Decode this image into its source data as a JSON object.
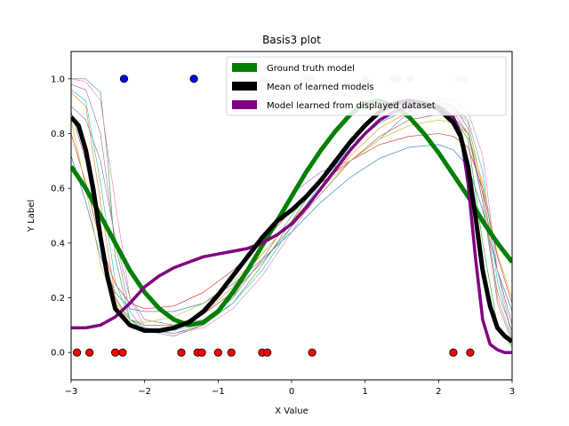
{
  "chart_data": {
    "type": "line",
    "title": "Basis3 plot",
    "xlabel": "X Value",
    "ylabel": "Y Label",
    "xlim": [
      -3,
      3
    ],
    "ylim": [
      -0.1,
      1.1
    ],
    "xticks": [
      "−3",
      "−2",
      "−1",
      "0",
      "1",
      "2",
      "3"
    ],
    "yticks": [
      "0.0",
      "0.2",
      "0.4",
      "0.6",
      "0.8",
      "1.0"
    ],
    "legend_position": "top-right",
    "grid": false,
    "legend": [
      {
        "label": "Ground truth model",
        "color": "#008000"
      },
      {
        "label": "Mean of learned models",
        "color": "#000000"
      },
      {
        "label": "Model learned from displayed dataset",
        "color": "#800080"
      }
    ],
    "series": [
      {
        "name": "Ground truth model",
        "color": "#008000",
        "width": 5,
        "x": [
          -3,
          -2.8,
          -2.6,
          -2.4,
          -2.2,
          -2.0,
          -1.8,
          -1.6,
          -1.4,
          -1.2,
          -1.0,
          -0.8,
          -0.6,
          -0.4,
          -0.2,
          0.0,
          0.2,
          0.4,
          0.6,
          0.8,
          1.0,
          1.2,
          1.4,
          1.6,
          1.8,
          2.0,
          2.2,
          2.4,
          2.6,
          2.8,
          3.0
        ],
        "y": [
          0.68,
          0.6,
          0.5,
          0.4,
          0.3,
          0.22,
          0.16,
          0.12,
          0.1,
          0.11,
          0.15,
          0.22,
          0.3,
          0.39,
          0.48,
          0.57,
          0.66,
          0.74,
          0.81,
          0.87,
          0.91,
          0.92,
          0.9,
          0.86,
          0.8,
          0.73,
          0.65,
          0.57,
          0.48,
          0.4,
          0.33
        ]
      },
      {
        "name": "Mean of learned models",
        "color": "#000000",
        "width": 5,
        "x": [
          -3,
          -2.9,
          -2.8,
          -2.7,
          -2.6,
          -2.5,
          -2.4,
          -2.2,
          -2.0,
          -1.8,
          -1.6,
          -1.4,
          -1.2,
          -1.0,
          -0.8,
          -0.6,
          -0.4,
          -0.2,
          0.0,
          0.2,
          0.4,
          0.6,
          0.8,
          1.0,
          1.2,
          1.4,
          1.6,
          1.8,
          2.0,
          2.2,
          2.3,
          2.4,
          2.5,
          2.6,
          2.7,
          2.8,
          2.9,
          3.0
        ],
        "y": [
          0.86,
          0.83,
          0.74,
          0.6,
          0.42,
          0.27,
          0.16,
          0.1,
          0.08,
          0.08,
          0.09,
          0.11,
          0.15,
          0.21,
          0.28,
          0.35,
          0.42,
          0.48,
          0.52,
          0.57,
          0.63,
          0.7,
          0.77,
          0.83,
          0.88,
          0.91,
          0.92,
          0.91,
          0.89,
          0.84,
          0.79,
          0.68,
          0.5,
          0.3,
          0.17,
          0.09,
          0.06,
          0.04
        ]
      },
      {
        "name": "Model learned from displayed dataset",
        "color": "#800080",
        "width": 3.5,
        "x": [
          -3,
          -2.8,
          -2.6,
          -2.4,
          -2.2,
          -2.0,
          -1.8,
          -1.6,
          -1.4,
          -1.2,
          -1.0,
          -0.8,
          -0.6,
          -0.4,
          -0.2,
          0.0,
          0.2,
          0.4,
          0.6,
          0.8,
          1.0,
          1.2,
          1.4,
          1.6,
          1.8,
          2.0,
          2.2,
          2.3,
          2.4,
          2.5,
          2.6,
          2.7,
          2.8,
          2.9,
          3.0
        ],
        "y": [
          0.09,
          0.09,
          0.1,
          0.13,
          0.18,
          0.24,
          0.28,
          0.31,
          0.33,
          0.35,
          0.36,
          0.37,
          0.38,
          0.4,
          0.43,
          0.47,
          0.53,
          0.6,
          0.67,
          0.74,
          0.8,
          0.85,
          0.88,
          0.9,
          0.91,
          0.9,
          0.86,
          0.8,
          0.62,
          0.35,
          0.12,
          0.03,
          0.01,
          0.0,
          0.0
        ]
      }
    ],
    "thin_series": [
      {
        "color": "#1f77b4",
        "x": [
          -3,
          -2.8,
          -2.6,
          -2.4,
          -2.2,
          -2.0,
          -1.6,
          -1.2,
          -0.8,
          -0.4,
          0.0,
          0.4,
          0.8,
          1.2,
          1.6,
          2.0,
          2.2,
          2.4,
          2.6,
          2.8,
          3.0
        ],
        "y": [
          0.72,
          0.55,
          0.35,
          0.22,
          0.16,
          0.15,
          0.15,
          0.18,
          0.25,
          0.34,
          0.44,
          0.55,
          0.64,
          0.71,
          0.75,
          0.76,
          0.74,
          0.68,
          0.52,
          0.3,
          0.15
        ]
      },
      {
        "color": "#ff7f0e",
        "x": [
          -3,
          -2.8,
          -2.6,
          -2.4,
          -2.2,
          -2.0,
          -1.6,
          -1.2,
          -0.8,
          -0.4,
          0.0,
          0.4,
          0.8,
          1.2,
          1.6,
          2.0,
          2.2,
          2.4,
          2.6,
          2.8,
          3.0
        ],
        "y": [
          0.95,
          0.9,
          0.55,
          0.2,
          0.1,
          0.08,
          0.09,
          0.14,
          0.24,
          0.36,
          0.48,
          0.6,
          0.72,
          0.82,
          0.88,
          0.9,
          0.89,
          0.84,
          0.6,
          0.2,
          0.05
        ]
      },
      {
        "color": "#2ca02c",
        "x": [
          -3,
          -2.8,
          -2.6,
          -2.5,
          -2.4,
          -2.2,
          -2.0,
          -1.6,
          -1.2,
          -0.8,
          -0.4,
          0.0,
          0.4,
          0.8,
          1.2,
          1.6,
          2.0,
          2.2,
          2.4,
          2.6,
          2.8,
          3.0
        ],
        "y": [
          1.0,
          1.0,
          0.95,
          0.7,
          0.35,
          0.12,
          0.08,
          0.07,
          0.1,
          0.18,
          0.32,
          0.48,
          0.64,
          0.78,
          0.88,
          0.92,
          0.9,
          0.86,
          0.78,
          0.4,
          0.1,
          0.02
        ]
      },
      {
        "color": "#d62728",
        "x": [
          -3,
          -2.8,
          -2.6,
          -2.4,
          -2.2,
          -2.0,
          -1.6,
          -1.2,
          -0.8,
          -0.4,
          0.0,
          0.4,
          0.8,
          1.2,
          1.6,
          2.0,
          2.2,
          2.4,
          2.6,
          2.8,
          3.0
        ],
        "y": [
          0.8,
          0.62,
          0.4,
          0.25,
          0.18,
          0.16,
          0.17,
          0.22,
          0.3,
          0.4,
          0.52,
          0.62,
          0.7,
          0.76,
          0.79,
          0.8,
          0.79,
          0.75,
          0.6,
          0.35,
          0.18
        ]
      },
      {
        "color": "#9467bd",
        "x": [
          -3,
          -2.8,
          -2.6,
          -2.4,
          -2.2,
          -2.0,
          -1.6,
          -1.2,
          -0.8,
          -0.4,
          0.0,
          0.4,
          0.8,
          1.2,
          1.6,
          2.0,
          2.2,
          2.4,
          2.6,
          2.8,
          3.0
        ],
        "y": [
          0.98,
          0.96,
          0.8,
          0.4,
          0.15,
          0.08,
          0.06,
          0.1,
          0.2,
          0.38,
          0.58,
          0.66,
          0.7,
          0.78,
          0.88,
          0.92,
          0.9,
          0.82,
          0.55,
          0.18,
          0.04
        ]
      },
      {
        "color": "#8c564b",
        "x": [
          -3,
          -2.8,
          -2.6,
          -2.4,
          -2.2,
          -2.0,
          -1.6,
          -1.2,
          -0.8,
          -0.4,
          0.0,
          0.4,
          0.8,
          1.2,
          1.6,
          2.0,
          2.2,
          2.4,
          2.6,
          2.8,
          3.0
        ],
        "y": [
          0.88,
          0.7,
          0.4,
          0.2,
          0.12,
          0.1,
          0.1,
          0.14,
          0.22,
          0.33,
          0.46,
          0.58,
          0.7,
          0.79,
          0.85,
          0.87,
          0.86,
          0.8,
          0.58,
          0.3,
          0.1
        ]
      },
      {
        "color": "#e377c2",
        "x": [
          -3,
          -2.8,
          -2.6,
          -2.4,
          -2.2,
          -2.0,
          -1.6,
          -1.2,
          -0.8,
          -0.4,
          0.0,
          0.4,
          0.8,
          1.2,
          1.6,
          2.0,
          2.2,
          2.4,
          2.6,
          2.8,
          3.0
        ],
        "y": [
          1.0,
          0.99,
          0.92,
          0.55,
          0.2,
          0.09,
          0.07,
          0.09,
          0.16,
          0.28,
          0.44,
          0.6,
          0.74,
          0.85,
          0.91,
          0.93,
          0.92,
          0.88,
          0.72,
          0.3,
          0.06
        ]
      },
      {
        "color": "#7f7f7f",
        "x": [
          -3,
          -2.8,
          -2.6,
          -2.4,
          -2.2,
          -2.0,
          -1.6,
          -1.2,
          -0.8,
          -0.4,
          0.0,
          0.4,
          0.8,
          1.2,
          1.6,
          2.0,
          2.2,
          2.4,
          2.6,
          2.8,
          3.0
        ],
        "y": [
          0.9,
          0.85,
          0.7,
          0.42,
          0.2,
          0.12,
          0.1,
          0.12,
          0.2,
          0.34,
          0.5,
          0.64,
          0.76,
          0.84,
          0.89,
          0.9,
          0.88,
          0.8,
          0.55,
          0.22,
          0.08
        ]
      },
      {
        "color": "#bcbd22",
        "x": [
          -3,
          -2.8,
          -2.6,
          -2.4,
          -2.2,
          -2.0,
          -1.6,
          -1.2,
          -0.8,
          -0.4,
          0.0,
          0.4,
          0.8,
          1.2,
          1.6,
          2.0,
          2.2,
          2.4,
          2.6,
          2.8,
          3.0
        ],
        "y": [
          0.85,
          0.6,
          0.32,
          0.18,
          0.12,
          0.11,
          0.13,
          0.18,
          0.26,
          0.36,
          0.48,
          0.6,
          0.7,
          0.78,
          0.83,
          0.85,
          0.84,
          0.8,
          0.62,
          0.36,
          0.2
        ]
      },
      {
        "color": "#17becf",
        "x": [
          -3,
          -2.8,
          -2.6,
          -2.4,
          -2.2,
          -2.0,
          -1.6,
          -1.2,
          -0.8,
          -0.4,
          0.0,
          0.4,
          0.8,
          1.2,
          1.6,
          2.0,
          2.2,
          2.4,
          2.6,
          2.8,
          3.0
        ],
        "y": [
          0.96,
          0.92,
          0.62,
          0.26,
          0.12,
          0.09,
          0.08,
          0.11,
          0.18,
          0.3,
          0.46,
          0.62,
          0.75,
          0.84,
          0.89,
          0.91,
          0.9,
          0.85,
          0.66,
          0.26,
          0.06
        ]
      }
    ],
    "scatter_points": {
      "red_y0": {
        "color": "#ff0000",
        "y": 0.0,
        "x": [
          -2.92,
          -2.75,
          -2.4,
          -2.3,
          -1.5,
          -1.28,
          -1.22,
          -1.0,
          -0.82,
          -0.4,
          -0.33,
          0.28,
          2.2,
          2.43
        ]
      },
      "blue_y1": {
        "color": "#0000ff",
        "y": 1.0,
        "x": [
          -2.28,
          -1.33
        ]
      },
      "faded_y1": {
        "color": "#c8c8e8",
        "y": 1.0,
        "x": [
          -0.38,
          0.2,
          0.27,
          1.0,
          1.38,
          1.45,
          1.62,
          2.28,
          2.35
        ]
      }
    }
  }
}
